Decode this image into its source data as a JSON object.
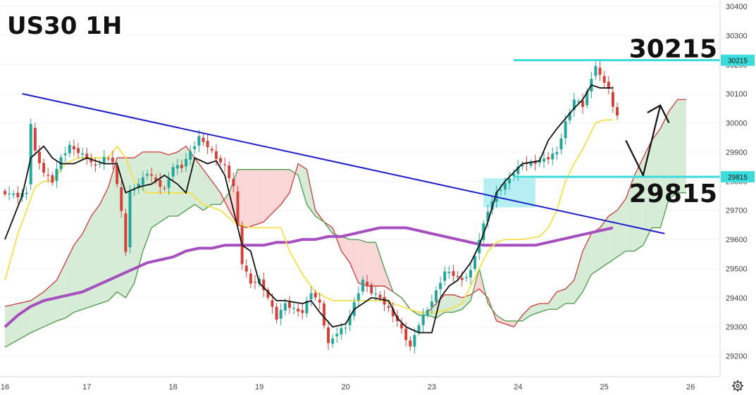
{
  "title": "US30 1H",
  "colors": {
    "bull": "#26a69a",
    "bear": "#d0443c",
    "tenkan": "#111111",
    "kijun": "#f5e04a",
    "ma": "#a64fbf",
    "trendline": "#1f1fc8",
    "level": "#3cdcdc",
    "cloud_bull_fill": "#d6ecd6",
    "cloud_bear_fill": "#fbd6d6",
    "span_a": "#cc3a3a",
    "span_b": "#4a9a4a",
    "zone": "#a8ecf2"
  },
  "settings_icon": "gear-icon",
  "chart_data": {
    "type": "candlestick",
    "ylim": [
      29170,
      30400
    ],
    "x_ticks": [
      {
        "label": "16",
        "t": 0
      },
      {
        "label": "17",
        "t": 19
      },
      {
        "label": "18",
        "t": 39
      },
      {
        "label": "19",
        "t": 59
      },
      {
        "label": "20",
        "t": 79
      },
      {
        "label": "23",
        "t": 99
      },
      {
        "label": "24",
        "t": 119
      },
      {
        "label": "25",
        "t": 139
      },
      {
        "label": "26",
        "t": 159
      }
    ],
    "y_ticks": [
      29200,
      29300,
      29400,
      29500,
      29600,
      29700,
      29800,
      29900,
      30000,
      30100,
      30200,
      30300,
      30400
    ],
    "price_points": [
      [
        0,
        29760
      ],
      [
        3,
        29750
      ],
      [
        5,
        29760
      ],
      [
        6,
        30000
      ],
      [
        7,
        29900
      ],
      [
        9,
        29830
      ],
      [
        11,
        29800
      ],
      [
        13,
        29880
      ],
      [
        15,
        29920
      ],
      [
        17,
        29900
      ],
      [
        19,
        29880
      ],
      [
        21,
        29850
      ],
      [
        23,
        29880
      ],
      [
        25,
        29870
      ],
      [
        27,
        29700
      ],
      [
        28,
        29560
      ],
      [
        29,
        29760
      ],
      [
        31,
        29790
      ],
      [
        33,
        29830
      ],
      [
        35,
        29800
      ],
      [
        37,
        29770
      ],
      [
        39,
        29850
      ],
      [
        41,
        29850
      ],
      [
        43,
        29900
      ],
      [
        45,
        29950
      ],
      [
        47,
        29920
      ],
      [
        49,
        29880
      ],
      [
        51,
        29850
      ],
      [
        53,
        29780
      ],
      [
        55,
        29520
      ],
      [
        57,
        29450
      ],
      [
        59,
        29460
      ],
      [
        61,
        29400
      ],
      [
        63,
        29330
      ],
      [
        65,
        29380
      ],
      [
        67,
        29360
      ],
      [
        69,
        29350
      ],
      [
        71,
        29420
      ],
      [
        73,
        29380
      ],
      [
        75,
        29240
      ],
      [
        77,
        29280
      ],
      [
        79,
        29300
      ],
      [
        81,
        29380
      ],
      [
        83,
        29460
      ],
      [
        85,
        29420
      ],
      [
        87,
        29400
      ],
      [
        89,
        29360
      ],
      [
        91,
        29320
      ],
      [
        93,
        29260
      ],
      [
        94,
        29230
      ],
      [
        96,
        29310
      ],
      [
        98,
        29360
      ],
      [
        100,
        29420
      ],
      [
        102,
        29490
      ],
      [
        104,
        29480
      ],
      [
        106,
        29460
      ],
      [
        108,
        29490
      ],
      [
        110,
        29600
      ],
      [
        112,
        29700
      ],
      [
        114,
        29760
      ],
      [
        116,
        29790
      ],
      [
        118,
        29830
      ],
      [
        120,
        29860
      ],
      [
        122,
        29860
      ],
      [
        124,
        29870
      ],
      [
        126,
        29880
      ],
      [
        128,
        29900
      ],
      [
        130,
        30000
      ],
      [
        132,
        30080
      ],
      [
        134,
        30060
      ],
      [
        136,
        30150
      ],
      [
        137,
        30200
      ],
      [
        138,
        30160
      ],
      [
        140,
        30120
      ],
      [
        141,
        30050
      ],
      [
        142,
        30030
      ]
    ],
    "tenkan": [
      [
        0,
        29600
      ],
      [
        4,
        29750
      ],
      [
        6,
        29880
      ],
      [
        9,
        29920
      ],
      [
        11,
        29880
      ],
      [
        13,
        29860
      ],
      [
        16,
        29860
      ],
      [
        19,
        29880
      ],
      [
        21,
        29870
      ],
      [
        23,
        29860
      ],
      [
        26,
        29860
      ],
      [
        28,
        29760
      ],
      [
        31,
        29780
      ],
      [
        34,
        29790
      ],
      [
        37,
        29820
      ],
      [
        40,
        29790
      ],
      [
        42,
        29760
      ],
      [
        44,
        29880
      ],
      [
        47,
        29860
      ],
      [
        49,
        29870
      ],
      [
        51,
        29820
      ],
      [
        53,
        29700
      ],
      [
        55,
        29580
      ],
      [
        57,
        29560
      ],
      [
        59,
        29450
      ],
      [
        61,
        29420
      ],
      [
        63,
        29390
      ],
      [
        65,
        29390
      ],
      [
        69,
        29380
      ],
      [
        71,
        29390
      ],
      [
        73,
        29350
      ],
      [
        76,
        29300
      ],
      [
        79,
        29310
      ],
      [
        81,
        29360
      ],
      [
        83,
        29380
      ],
      [
        85,
        29400
      ],
      [
        89,
        29390
      ],
      [
        91,
        29330
      ],
      [
        93,
        29300
      ],
      [
        96,
        29280
      ],
      [
        99,
        29280
      ],
      [
        101,
        29400
      ],
      [
        103,
        29440
      ],
      [
        105,
        29460
      ],
      [
        108,
        29520
      ],
      [
        110,
        29580
      ],
      [
        112,
        29660
      ],
      [
        114,
        29760
      ],
      [
        116,
        29800
      ],
      [
        118,
        29830
      ],
      [
        120,
        29860
      ],
      [
        124,
        29870
      ],
      [
        126,
        29940
      ],
      [
        128,
        29980
      ],
      [
        132,
        30050
      ],
      [
        134,
        30080
      ],
      [
        136,
        30130
      ],
      [
        138,
        30120
      ],
      [
        141,
        30120
      ]
    ],
    "kijun": [
      [
        0,
        29460
      ],
      [
        3,
        29620
      ],
      [
        5,
        29700
      ],
      [
        7,
        29780
      ],
      [
        9,
        29800
      ],
      [
        11,
        29800
      ],
      [
        14,
        29860
      ],
      [
        17,
        29880
      ],
      [
        20,
        29880
      ],
      [
        24,
        29880
      ],
      [
        26,
        29920
      ],
      [
        28,
        29880
      ],
      [
        30,
        29800
      ],
      [
        33,
        29760
      ],
      [
        36,
        29760
      ],
      [
        40,
        29760
      ],
      [
        43,
        29760
      ],
      [
        46,
        29720
      ],
      [
        50,
        29700
      ],
      [
        53,
        29660
      ],
      [
        57,
        29640
      ],
      [
        61,
        29640
      ],
      [
        64,
        29640
      ],
      [
        66,
        29560
      ],
      [
        69,
        29480
      ],
      [
        72,
        29420
      ],
      [
        76,
        29390
      ],
      [
        80,
        29390
      ],
      [
        84,
        29390
      ],
      [
        88,
        29390
      ],
      [
        92,
        29370
      ],
      [
        96,
        29350
      ],
      [
        100,
        29350
      ],
      [
        103,
        29360
      ],
      [
        106,
        29380
      ],
      [
        108,
        29440
      ],
      [
        110,
        29500
      ],
      [
        112,
        29560
      ],
      [
        114,
        29590
      ],
      [
        116,
        29600
      ],
      [
        120,
        29600
      ],
      [
        124,
        29610
      ],
      [
        126,
        29640
      ],
      [
        128,
        29700
      ],
      [
        130,
        29800
      ],
      [
        132,
        29860
      ],
      [
        134,
        29910
      ],
      [
        137,
        30000
      ],
      [
        139,
        30010
      ],
      [
        141,
        30010
      ]
    ],
    "ma": [
      [
        0,
        29300
      ],
      [
        3,
        29340
      ],
      [
        6,
        29370
      ],
      [
        9,
        29390
      ],
      [
        12,
        29400
      ],
      [
        15,
        29410
      ],
      [
        18,
        29420
      ],
      [
        21,
        29440
      ],
      [
        24,
        29460
      ],
      [
        27,
        29480
      ],
      [
        30,
        29500
      ],
      [
        33,
        29520
      ],
      [
        36,
        29530
      ],
      [
        39,
        29540
      ],
      [
        42,
        29560
      ],
      [
        45,
        29570
      ],
      [
        48,
        29570
      ],
      [
        51,
        29580
      ],
      [
        54,
        29580
      ],
      [
        57,
        29580
      ],
      [
        60,
        29580
      ],
      [
        63,
        29590
      ],
      [
        66,
        29590
      ],
      [
        69,
        29600
      ],
      [
        72,
        29600
      ],
      [
        75,
        29610
      ],
      [
        78,
        29610
      ],
      [
        81,
        29620
      ],
      [
        84,
        29630
      ],
      [
        87,
        29640
      ],
      [
        90,
        29640
      ],
      [
        93,
        29640
      ],
      [
        96,
        29630
      ],
      [
        99,
        29620
      ],
      [
        102,
        29610
      ],
      [
        105,
        29600
      ],
      [
        108,
        29590
      ],
      [
        111,
        29580
      ],
      [
        114,
        29580
      ],
      [
        117,
        29580
      ],
      [
        120,
        29580
      ],
      [
        123,
        29580
      ],
      [
        126,
        29590
      ],
      [
        129,
        29600
      ],
      [
        132,
        29610
      ],
      [
        135,
        29620
      ],
      [
        138,
        29630
      ],
      [
        141,
        29640
      ]
    ],
    "cloud": [
      [
        0,
        29370,
        29230
      ],
      [
        6,
        29390,
        29280
      ],
      [
        9,
        29420,
        29300
      ],
      [
        12,
        29460,
        29320
      ],
      [
        14,
        29520,
        29330
      ],
      [
        16,
        29580,
        29350
      ],
      [
        18,
        29620,
        29360
      ],
      [
        20,
        29680,
        29370
      ],
      [
        22,
        29720,
        29380
      ],
      [
        24,
        29780,
        29390
      ],
      [
        26,
        29880,
        29420
      ],
      [
        28,
        29880,
        29400
      ],
      [
        30,
        29880,
        29450
      ],
      [
        32,
        29900,
        29560
      ],
      [
        34,
        29900,
        29640
      ],
      [
        36,
        29900,
        29660
      ],
      [
        38,
        29890,
        29680
      ],
      [
        40,
        29900,
        29680
      ],
      [
        42,
        29920,
        29700
      ],
      [
        44,
        29880,
        29720
      ],
      [
        46,
        29840,
        29700
      ],
      [
        48,
        29800,
        29720
      ],
      [
        50,
        29760,
        29720
      ],
      [
        52,
        29700,
        29760
      ],
      [
        54,
        29650,
        29840
      ],
      [
        56,
        29640,
        29840
      ],
      [
        58,
        29650,
        29840
      ],
      [
        60,
        29660,
        29840
      ],
      [
        62,
        29690,
        29840
      ],
      [
        64,
        29720,
        29840
      ],
      [
        66,
        29760,
        29840
      ],
      [
        68,
        29860,
        29820
      ],
      [
        70,
        29840,
        29720
      ],
      [
        72,
        29700,
        29680
      ],
      [
        74,
        29660,
        29660
      ],
      [
        76,
        29640,
        29620
      ],
      [
        78,
        29560,
        29610
      ],
      [
        80,
        29520,
        29600
      ],
      [
        82,
        29450,
        29600
      ],
      [
        84,
        29440,
        29590
      ],
      [
        86,
        29440,
        29590
      ],
      [
        88,
        29440,
        29500
      ],
      [
        90,
        29420,
        29420
      ],
      [
        92,
        29400,
        29400
      ],
      [
        94,
        29360,
        29360
      ],
      [
        96,
        29350,
        29340
      ],
      [
        98,
        29350,
        29340
      ],
      [
        100,
        29380,
        29330
      ],
      [
        102,
        29410,
        29350
      ],
      [
        104,
        29410,
        29350
      ],
      [
        106,
        29400,
        29360
      ],
      [
        108,
        29410,
        29390
      ],
      [
        110,
        29430,
        29500
      ],
      [
        112,
        29400,
        29380
      ],
      [
        114,
        29320,
        29340
      ],
      [
        116,
        29310,
        29320
      ],
      [
        118,
        29300,
        29320
      ],
      [
        120,
        29340,
        29320
      ],
      [
        122,
        29370,
        29340
      ],
      [
        124,
        29380,
        29350
      ],
      [
        126,
        29380,
        29360
      ],
      [
        128,
        29420,
        29360
      ],
      [
        130,
        29430,
        29380
      ],
      [
        132,
        29460,
        29380
      ],
      [
        134,
        29560,
        29420
      ],
      [
        136,
        29620,
        29480
      ],
      [
        138,
        29640,
        29500
      ],
      [
        140,
        29680,
        29520
      ],
      [
        142,
        29700,
        29540
      ],
      [
        144,
        29740,
        29560
      ],
      [
        146,
        29820,
        29560
      ],
      [
        148,
        29880,
        29580
      ],
      [
        150,
        29940,
        29640
      ],
      [
        152,
        29980,
        29640
      ],
      [
        154,
        30040,
        29740
      ],
      [
        156,
        30080,
        29760
      ],
      [
        158,
        30080,
        29760
      ]
    ],
    "trendline": [
      [
        4,
        30100
      ],
      [
        153,
        29620
      ]
    ],
    "levels": [
      {
        "value": "30215",
        "price": 30215,
        "t_start": 118,
        "tag": "30215"
      },
      {
        "value": "29815",
        "price": 29815,
        "t_start": 118,
        "tag": "29815"
      }
    ],
    "zone": {
      "t_start": 111,
      "t_end": 123,
      "low": 29710,
      "high": 29810
    },
    "projection": [
      [
        144,
        29940
      ],
      [
        148,
        29820
      ],
      [
        152,
        30060
      ],
      [
        154,
        30000
      ]
    ]
  }
}
